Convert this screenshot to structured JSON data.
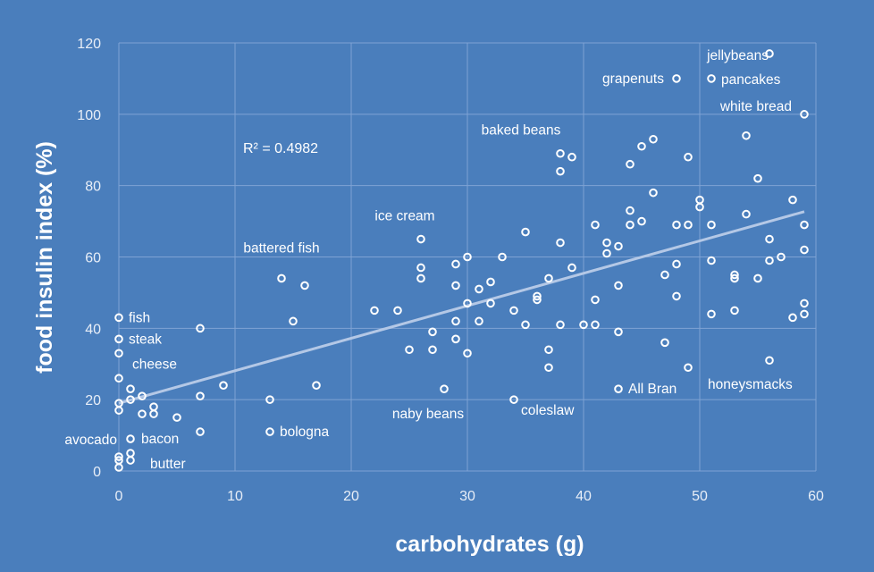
{
  "chart_data": {
    "type": "scatter",
    "title": "",
    "xlabel": "carbohydrates (g)",
    "ylabel": "food insulin index (%)",
    "xlim": [
      0,
      60
    ],
    "ylim": [
      0,
      120
    ],
    "xticks": [
      "0",
      "10",
      "20",
      "30",
      "40",
      "50",
      "60"
    ],
    "yticks": [
      "0",
      "20",
      "40",
      "60",
      "80",
      "100",
      "120"
    ],
    "grid": true,
    "trendline": {
      "type": "linear",
      "x": [
        0,
        59
      ],
      "y": [
        19.0,
        72.7
      ],
      "r2_label": "R² = 0.4982"
    },
    "colors": {
      "background": "#4a7ebc",
      "marker": "#ffffff",
      "trendline": "#b4c8e6",
      "grid": "#7fa3d4"
    },
    "points": [
      {
        "x": 0,
        "y": 43,
        "label": "fish"
      },
      {
        "x": 0,
        "y": 37,
        "label": "steak"
      },
      {
        "x": 0,
        "y": 33,
        "label": "cheese"
      },
      {
        "x": 0,
        "y": 26
      },
      {
        "x": 1,
        "y": 23
      },
      {
        "x": 1,
        "y": 20
      },
      {
        "x": 2,
        "y": 21
      },
      {
        "x": 0,
        "y": 19
      },
      {
        "x": 0,
        "y": 17
      },
      {
        "x": 3,
        "y": 18
      },
      {
        "x": 2,
        "y": 16
      },
      {
        "x": 3,
        "y": 16
      },
      {
        "x": 5,
        "y": 15
      },
      {
        "x": 7,
        "y": 40
      },
      {
        "x": 7,
        "y": 21
      },
      {
        "x": 7,
        "y": 11
      },
      {
        "x": 9,
        "y": 24
      },
      {
        "x": 13,
        "y": 20
      },
      {
        "x": 13,
        "y": 11,
        "label": "bologna"
      },
      {
        "x": 14,
        "y": 54,
        "label": "battered fish"
      },
      {
        "x": 15,
        "y": 42
      },
      {
        "x": 16,
        "y": 52
      },
      {
        "x": 17,
        "y": 24
      },
      {
        "x": 1,
        "y": 9,
        "label": "bacon"
      },
      {
        "x": 1,
        "y": 5
      },
      {
        "x": 1,
        "y": 3,
        "label": "butter"
      },
      {
        "x": 0,
        "y": 4
      },
      {
        "x": 0,
        "y": 3,
        "label": "avocado"
      },
      {
        "x": 0,
        "y": 1
      },
      {
        "x": 26,
        "y": 65,
        "label": "ice cream"
      },
      {
        "x": 26,
        "y": 57
      },
      {
        "x": 26,
        "y": 54
      },
      {
        "x": 22,
        "y": 45
      },
      {
        "x": 24,
        "y": 45
      },
      {
        "x": 27,
        "y": 39
      },
      {
        "x": 25,
        "y": 34
      },
      {
        "x": 27,
        "y": 34
      },
      {
        "x": 29,
        "y": 58
      },
      {
        "x": 29,
        "y": 52
      },
      {
        "x": 29,
        "y": 42
      },
      {
        "x": 29,
        "y": 37
      },
      {
        "x": 28,
        "y": 23,
        "label": "naby beans"
      },
      {
        "x": 30,
        "y": 60
      },
      {
        "x": 30,
        "y": 47
      },
      {
        "x": 30,
        "y": 33
      },
      {
        "x": 31,
        "y": 51
      },
      {
        "x": 31,
        "y": 42
      },
      {
        "x": 32,
        "y": 53
      },
      {
        "x": 32,
        "y": 47
      },
      {
        "x": 33,
        "y": 60
      },
      {
        "x": 34,
        "y": 45
      },
      {
        "x": 34,
        "y": 20,
        "label": "coleslaw"
      },
      {
        "x": 35,
        "y": 67
      },
      {
        "x": 35,
        "y": 41
      },
      {
        "x": 36,
        "y": 49
      },
      {
        "x": 36,
        "y": 48
      },
      {
        "x": 37,
        "y": 54
      },
      {
        "x": 37,
        "y": 34
      },
      {
        "x": 37,
        "y": 29
      },
      {
        "x": 38,
        "y": 89,
        "label": "baked beans"
      },
      {
        "x": 38,
        "y": 84
      },
      {
        "x": 38,
        "y": 64
      },
      {
        "x": 38,
        "y": 41
      },
      {
        "x": 39,
        "y": 88
      },
      {
        "x": 39,
        "y": 57
      },
      {
        "x": 40,
        "y": 41
      },
      {
        "x": 41,
        "y": 69
      },
      {
        "x": 41,
        "y": 48
      },
      {
        "x": 41,
        "y": 41
      },
      {
        "x": 42,
        "y": 64
      },
      {
        "x": 42,
        "y": 61
      },
      {
        "x": 43,
        "y": 63
      },
      {
        "x": 43,
        "y": 52
      },
      {
        "x": 43,
        "y": 39
      },
      {
        "x": 43,
        "y": 23,
        "label": "All Bran"
      },
      {
        "x": 44,
        "y": 86
      },
      {
        "x": 44,
        "y": 73
      },
      {
        "x": 44,
        "y": 69
      },
      {
        "x": 45,
        "y": 91
      },
      {
        "x": 45,
        "y": 70
      },
      {
        "x": 46,
        "y": 93
      },
      {
        "x": 46,
        "y": 78
      },
      {
        "x": 47,
        "y": 55
      },
      {
        "x": 47,
        "y": 36
      },
      {
        "x": 48,
        "y": 110,
        "label": "grapenuts"
      },
      {
        "x": 48,
        "y": 69
      },
      {
        "x": 48,
        "y": 58
      },
      {
        "x": 48,
        "y": 49
      },
      {
        "x": 49,
        "y": 88
      },
      {
        "x": 49,
        "y": 69
      },
      {
        "x": 49,
        "y": 29,
        "label": "honeysmacks"
      },
      {
        "x": 50,
        "y": 76
      },
      {
        "x": 50,
        "y": 74
      },
      {
        "x": 51,
        "y": 110,
        "label": "pancakes"
      },
      {
        "x": 51,
        "y": 69
      },
      {
        "x": 51,
        "y": 59
      },
      {
        "x": 51,
        "y": 44
      },
      {
        "x": 53,
        "y": 55
      },
      {
        "x": 53,
        "y": 54
      },
      {
        "x": 53,
        "y": 45
      },
      {
        "x": 54,
        "y": 94
      },
      {
        "x": 54,
        "y": 72
      },
      {
        "x": 55,
        "y": 82
      },
      {
        "x": 55,
        "y": 54
      },
      {
        "x": 56,
        "y": 117,
        "label": "jellybeans"
      },
      {
        "x": 56,
        "y": 65
      },
      {
        "x": 56,
        "y": 59
      },
      {
        "x": 56,
        "y": 31
      },
      {
        "x": 57,
        "y": 60
      },
      {
        "x": 58,
        "y": 76
      },
      {
        "x": 58,
        "y": 43
      },
      {
        "x": 59,
        "y": 100,
        "label": "white bread"
      },
      {
        "x": 59,
        "y": 69
      },
      {
        "x": 59,
        "y": 62
      },
      {
        "x": 59,
        "y": 47
      },
      {
        "x": 59,
        "y": 44
      }
    ]
  }
}
